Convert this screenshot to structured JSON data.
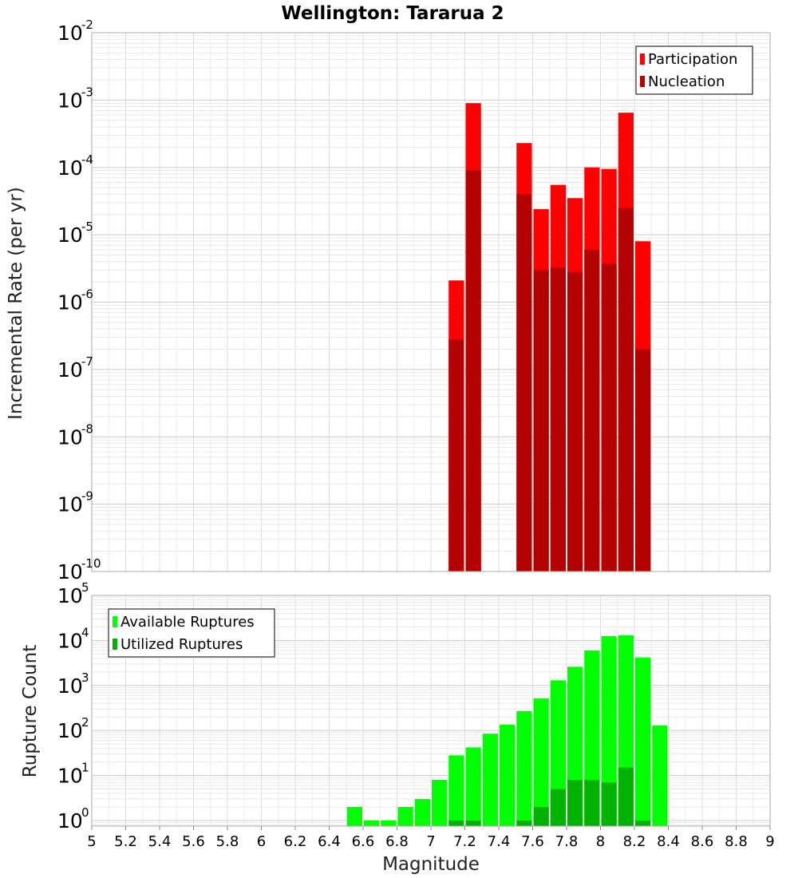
{
  "chart_data": [
    {
      "type": "bar",
      "title": "Wellington: Tararua 2",
      "xlabel": "",
      "ylabel": "Incremental Rate (per yr)",
      "yscale": "log",
      "ylim": [
        1e-10,
        0.01
      ],
      "xlim": [
        5,
        9
      ],
      "bin_width": 0.1,
      "grid": true,
      "legend_position": "top-right",
      "x": [
        7.15,
        7.25,
        7.55,
        7.65,
        7.75,
        7.85,
        7.95,
        8.05,
        8.15,
        8.25
      ],
      "series": [
        {
          "name": "Participation",
          "color": "#ff0000",
          "values": [
            2.1e-06,
            0.0009,
            0.00023,
            2.4e-05,
            5.5e-05,
            3.5e-05,
            0.0001,
            9.5e-05,
            0.00065,
            8e-06
          ]
        },
        {
          "name": "Nucleation",
          "color": "#b30000",
          "values": [
            2.8e-07,
            9e-05,
            4e-05,
            3e-06,
            3.3e-06,
            2.8e-06,
            6e-06,
            3.7e-06,
            2.5e-05,
            2e-07
          ]
        }
      ]
    },
    {
      "type": "bar",
      "xlabel": "Magnitude",
      "ylabel": "Rupture Count",
      "yscale": "log",
      "ylim": [
        0.75,
        100000.0
      ],
      "xlim": [
        5,
        9
      ],
      "bin_width": 0.1,
      "grid": true,
      "legend_position": "top-left",
      "x_ticks": [
        "5",
        "5.2",
        "5.4",
        "5.6",
        "5.8",
        "6",
        "6.2",
        "6.4",
        "6.6",
        "6.8",
        "7",
        "7.2",
        "7.4",
        "7.6",
        "7.8",
        "8",
        "8.2",
        "8.4",
        "8.6",
        "8.8",
        "9"
      ],
      "x": [
        6.55,
        6.65,
        6.75,
        6.85,
        6.95,
        7.05,
        7.15,
        7.25,
        7.35,
        7.45,
        7.55,
        7.65,
        7.75,
        7.85,
        7.95,
        8.05,
        8.15,
        8.25,
        8.35
      ],
      "series": [
        {
          "name": "Available Ruptures",
          "color": "#00ff00",
          "values": [
            2,
            1,
            1,
            2,
            3,
            8,
            28,
            42,
            85,
            135,
            270,
            520,
            1300,
            2600,
            6000,
            12500,
            13000,
            4200,
            130
          ]
        },
        {
          "name": "Utilized Ruptures",
          "color": "#00b300",
          "values": [
            0,
            0,
            0,
            0,
            0,
            0,
            1,
            1,
            0,
            0,
            1,
            2,
            5,
            8,
            8,
            7,
            15,
            1,
            0
          ]
        }
      ]
    }
  ]
}
